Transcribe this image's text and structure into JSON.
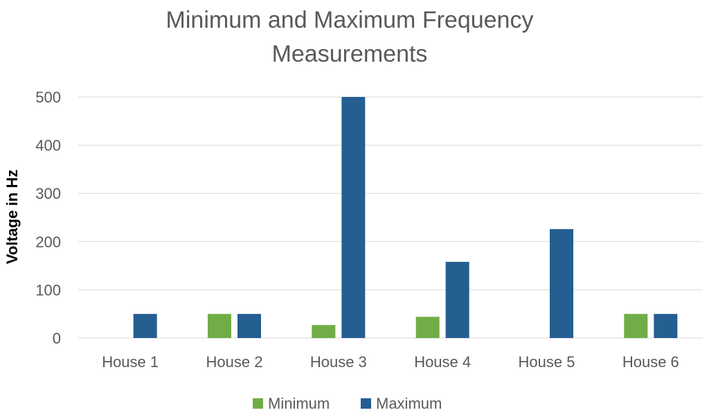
{
  "chart_data": {
    "type": "bar",
    "title": "Minimum and Maximum Frequency Measurements",
    "title_lines": [
      "Minimum and Maximum Frequency",
      "Measurements"
    ],
    "xlabel": "",
    "ylabel": "Voltage in Hz",
    "categories": [
      "House 1",
      "House 2",
      "House 3",
      "House 4",
      "House 5",
      "House 6"
    ],
    "series": [
      {
        "name": "Minimum",
        "color": "#70ad47",
        "values": [
          0,
          50,
          27,
          44,
          0,
          50
        ]
      },
      {
        "name": "Maximum",
        "color": "#255e91",
        "values": [
          50,
          50,
          500,
          158,
          226,
          50
        ]
      }
    ],
    "ylim": [
      0,
      500
    ],
    "yticks": [
      0,
      100,
      200,
      300,
      400,
      500
    ],
    "grid": true,
    "legend_position": "bottom"
  }
}
